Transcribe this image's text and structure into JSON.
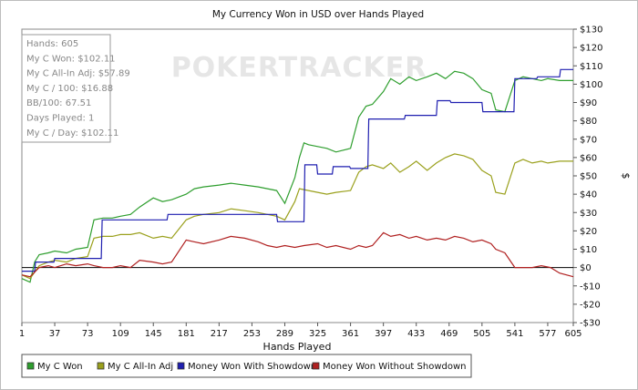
{
  "chart_data": {
    "type": "line",
    "title": "My Currency Won in USD over Hands Played",
    "xlabel": "Hands Played",
    "ylabel": "$",
    "xlim": [
      1,
      605
    ],
    "ylim": [
      -30,
      130
    ],
    "x_ticks": [
      1,
      37,
      73,
      109,
      145,
      181,
      217,
      253,
      289,
      325,
      361,
      397,
      433,
      469,
      505,
      541,
      577,
      605
    ],
    "y_ticks": [
      -30,
      -20,
      -10,
      0,
      10,
      20,
      30,
      40,
      50,
      60,
      70,
      80,
      90,
      100,
      110,
      120,
      130
    ],
    "y_tick_labels": [
      "-$30",
      "-$20",
      "-$10",
      "$0",
      "$10",
      "$20",
      "$30",
      "$40",
      "$50",
      "$60",
      "$70",
      "$80",
      "$90",
      "$100",
      "$110",
      "$120",
      "$130"
    ],
    "grid": false,
    "legend_position": "bottom",
    "watermark": "POKERTRACKER",
    "series": [
      {
        "name": "My C Won",
        "color": "#2e9e2e",
        "x": [
          1,
          10,
          15,
          20,
          30,
          37,
          50,
          60,
          73,
          80,
          90,
          100,
          109,
          120,
          130,
          145,
          155,
          165,
          181,
          190,
          200,
          217,
          230,
          245,
          260,
          270,
          280,
          289,
          300,
          305,
          310,
          315,
          325,
          335,
          345,
          361,
          370,
          378,
          385,
          397,
          405,
          415,
          425,
          433,
          445,
          455,
          465,
          475,
          485,
          495,
          505,
          515,
          520,
          530,
          541,
          550,
          560,
          570,
          577,
          590,
          605
        ],
        "y": [
          -6,
          -8,
          3,
          7,
          8,
          9,
          8,
          10,
          11,
          26,
          27,
          27,
          28,
          29,
          33,
          38,
          36,
          37,
          40,
          43,
          44,
          45,
          46,
          45,
          44,
          43,
          42,
          35,
          49,
          60,
          68,
          67,
          66,
          65,
          63,
          65,
          82,
          88,
          89,
          96,
          103,
          100,
          104,
          102,
          104,
          106,
          103,
          107,
          106,
          103,
          97,
          95,
          86,
          85,
          102,
          104,
          103,
          102,
          103,
          102,
          102
        ]
      },
      {
        "name": "My C All-In Adj",
        "color": "#9aa01c",
        "x": [
          1,
          10,
          20,
          30,
          37,
          50,
          60,
          73,
          80,
          90,
          100,
          109,
          120,
          130,
          145,
          155,
          165,
          181,
          190,
          200,
          217,
          230,
          245,
          260,
          270,
          280,
          289,
          300,
          305,
          315,
          325,
          335,
          345,
          361,
          370,
          378,
          385,
          397,
          405,
          415,
          425,
          433,
          445,
          455,
          465,
          475,
          485,
          495,
          505,
          515,
          520,
          530,
          541,
          550,
          560,
          570,
          577,
          590,
          605
        ],
        "y": [
          -4,
          -6,
          1,
          3,
          4,
          3,
          5,
          6,
          16,
          17,
          17,
          18,
          18,
          19,
          16,
          17,
          16,
          26,
          28,
          29,
          30,
          32,
          31,
          30,
          29,
          28,
          26,
          36,
          43,
          42,
          41,
          40,
          41,
          42,
          52,
          55,
          56,
          54,
          57,
          52,
          55,
          58,
          53,
          57,
          60,
          62,
          61,
          59,
          53,
          50,
          41,
          40,
          57,
          59,
          57,
          58,
          57,
          58,
          58
        ]
      },
      {
        "name": "Money Won With Showdown",
        "color": "#1f1fb0",
        "x": [
          1,
          15,
          16,
          36,
          37,
          88,
          89,
          160,
          161,
          280,
          281,
          310,
          311,
          324,
          325,
          341,
          342,
          360,
          361,
          380,
          381,
          420,
          421,
          455,
          456,
          470,
          471,
          505,
          506,
          540,
          541,
          565,
          566,
          590,
          591,
          605
        ],
        "y": [
          -2,
          -2,
          3,
          3,
          5,
          5,
          26,
          26,
          29,
          29,
          25,
          25,
          56,
          56,
          51,
          51,
          55,
          55,
          54,
          54,
          81,
          81,
          83,
          83,
          91,
          91,
          90,
          90,
          85,
          85,
          103,
          103,
          104,
          104,
          108,
          108
        ]
      },
      {
        "name": "Money Won Without Showdown",
        "color": "#b02020",
        "x": [
          1,
          10,
          20,
          30,
          37,
          50,
          60,
          73,
          80,
          90,
          100,
          109,
          120,
          130,
          145,
          155,
          165,
          181,
          190,
          200,
          217,
          230,
          245,
          260,
          270,
          280,
          289,
          300,
          310,
          325,
          335,
          345,
          361,
          370,
          378,
          385,
          397,
          405,
          415,
          425,
          433,
          445,
          455,
          465,
          475,
          485,
          495,
          505,
          515,
          520,
          530,
          541,
          550,
          560,
          570,
          580,
          590,
          605
        ],
        "y": [
          -4,
          -5,
          0,
          1,
          0,
          2,
          1,
          2,
          1,
          0,
          0,
          1,
          0,
          4,
          3,
          2,
          3,
          15,
          14,
          13,
          15,
          17,
          16,
          14,
          12,
          11,
          12,
          11,
          12,
          13,
          11,
          12,
          10,
          12,
          11,
          12,
          19,
          17,
          18,
          16,
          17,
          15,
          16,
          15,
          17,
          16,
          14,
          15,
          13,
          10,
          8,
          0,
          0,
          0,
          1,
          0,
          -3,
          -5
        ]
      }
    ],
    "stats": [
      "Hands: 605",
      "My C Won: $102.11",
      "My C All-In Adj: $57.89",
      "My C / 100: $16.88",
      "BB/100: 67.51",
      "Days Played: 1",
      "My C / Day: $102.11"
    ]
  }
}
